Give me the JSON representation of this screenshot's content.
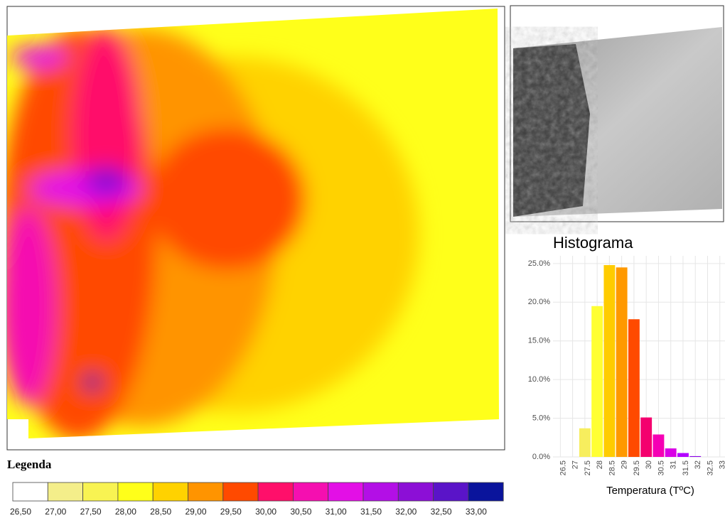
{
  "chart_data": {
    "type": "bar",
    "title": "Histograma",
    "xlabel": "Temperatura (TºC)",
    "x": [
      27.5,
      28,
      28.5,
      29,
      29.5,
      30,
      30.5,
      31,
      31.5,
      32
    ],
    "values": [
      3.7,
      19.5,
      24.8,
      24.5,
      17.8,
      5.1,
      2.9,
      1.1,
      0.5,
      0.1
    ],
    "colors": [
      "#f7ee5e",
      "#ffff33",
      "#ffcc00",
      "#ff9900",
      "#ff4a00",
      "#f4006e",
      "#f500b4",
      "#d900e6",
      "#b300ff",
      "#8a00e6"
    ],
    "xlim": [
      26.2,
      33.5
    ],
    "xticks": [
      26.5,
      27,
      27.5,
      28,
      28.5,
      29,
      29.5,
      30,
      30.5,
      31,
      31.5,
      32,
      32.5,
      33
    ],
    "ylim": [
      0,
      26
    ],
    "yticks": [
      {
        "value": 0,
        "label": "0.0%"
      },
      {
        "value": 5,
        "label": "5.0%"
      },
      {
        "value": 10,
        "label": "10.0%"
      },
      {
        "value": 15,
        "label": "15.0%"
      },
      {
        "value": 20,
        "label": "20.0%"
      },
      {
        "value": 25,
        "label": "25.0%"
      }
    ],
    "grid": true
  },
  "legend": {
    "title": "Legenda",
    "colors": [
      "#ffffff",
      "#f4ee8a",
      "#f8f352",
      "#ffff1a",
      "#ffd200",
      "#ff9400",
      "#ff4a00",
      "#ff0f6a",
      "#f50fb0",
      "#e30fe6",
      "#b30fe6",
      "#8c0fd6",
      "#5a14c8",
      "#0a149c"
    ],
    "labels": [
      "26,50",
      "27,00",
      "27,50",
      "28,00",
      "28,50",
      "29,00",
      "29,50",
      "30,00",
      "30,50",
      "31,00",
      "31,50",
      "32,00",
      "32,50",
      "33,00"
    ]
  }
}
